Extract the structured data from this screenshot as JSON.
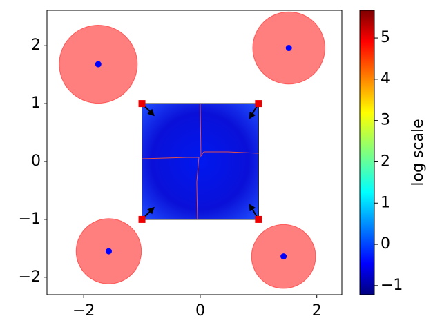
{
  "chart_data": {
    "type": "scatter",
    "xlim": [
      -2.63,
      2.43
    ],
    "ylim": [
      -2.3,
      2.61
    ],
    "xticks": [
      {
        "value": -2,
        "label": "−2"
      },
      0,
      2
    ],
    "yticks": [
      {
        "value": -2,
        "label": "−2"
      },
      {
        "value": -1,
        "label": "−1"
      },
      0,
      1,
      2
    ],
    "series": [
      {
        "color": "#0000ff",
        "circle_color": "#ff0000",
        "x": [
          -1.75,
          1.52,
          -1.57,
          1.43
        ],
        "values": [
          1.68,
          1.96,
          -1.55,
          -1.64
        ],
        "radius": [
          0.67,
          0.62,
          0.56,
          0.55
        ]
      }
    ],
    "corners": {
      "color": "#ee0000",
      "x": [
        -1,
        1,
        -1,
        1
      ],
      "values": [
        1,
        1,
        -1,
        -1
      ],
      "arrow_dx": [
        0.2,
        -0.15,
        0.2,
        -0.15
      ],
      "arrow_dy": [
        -0.2,
        -0.25,
        0.2,
        0.25
      ]
    },
    "colorbar": {
      "label": "log scale",
      "lim": [
        -1.22,
        5.67
      ],
      "ticks": [
        {
          "value": -1,
          "label": "−1"
        },
        0,
        1,
        2,
        3,
        4,
        5
      ]
    }
  }
}
